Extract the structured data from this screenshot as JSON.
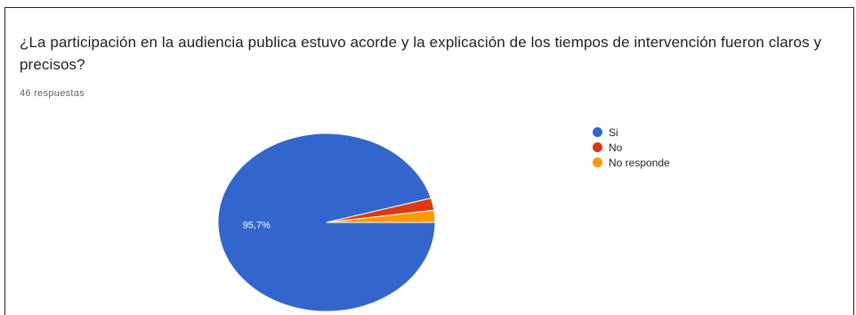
{
  "question": {
    "title": "¿La participación en la audiencia publica estuvo acorde y la explicación de los tiempos de intervención fueron claros y precisos?",
    "responses": "46 respuestas"
  },
  "chart_data": {
    "type": "pie",
    "title": "¿La participación en la audiencia publica estuvo acorde y la explicación de los tiempos de intervención fueron claros y precisos?",
    "subtitle": "46 respuestas",
    "legend_position": "right",
    "slices": [
      {
        "label": "Si",
        "value": 95.7,
        "display": "95,7%",
        "color": "#3366cc"
      },
      {
        "label": "No",
        "value": 2.2,
        "display": "",
        "color": "#dc3912"
      },
      {
        "label": "No responde",
        "value": 2.2,
        "display": "",
        "color": "#ff9900"
      }
    ]
  }
}
